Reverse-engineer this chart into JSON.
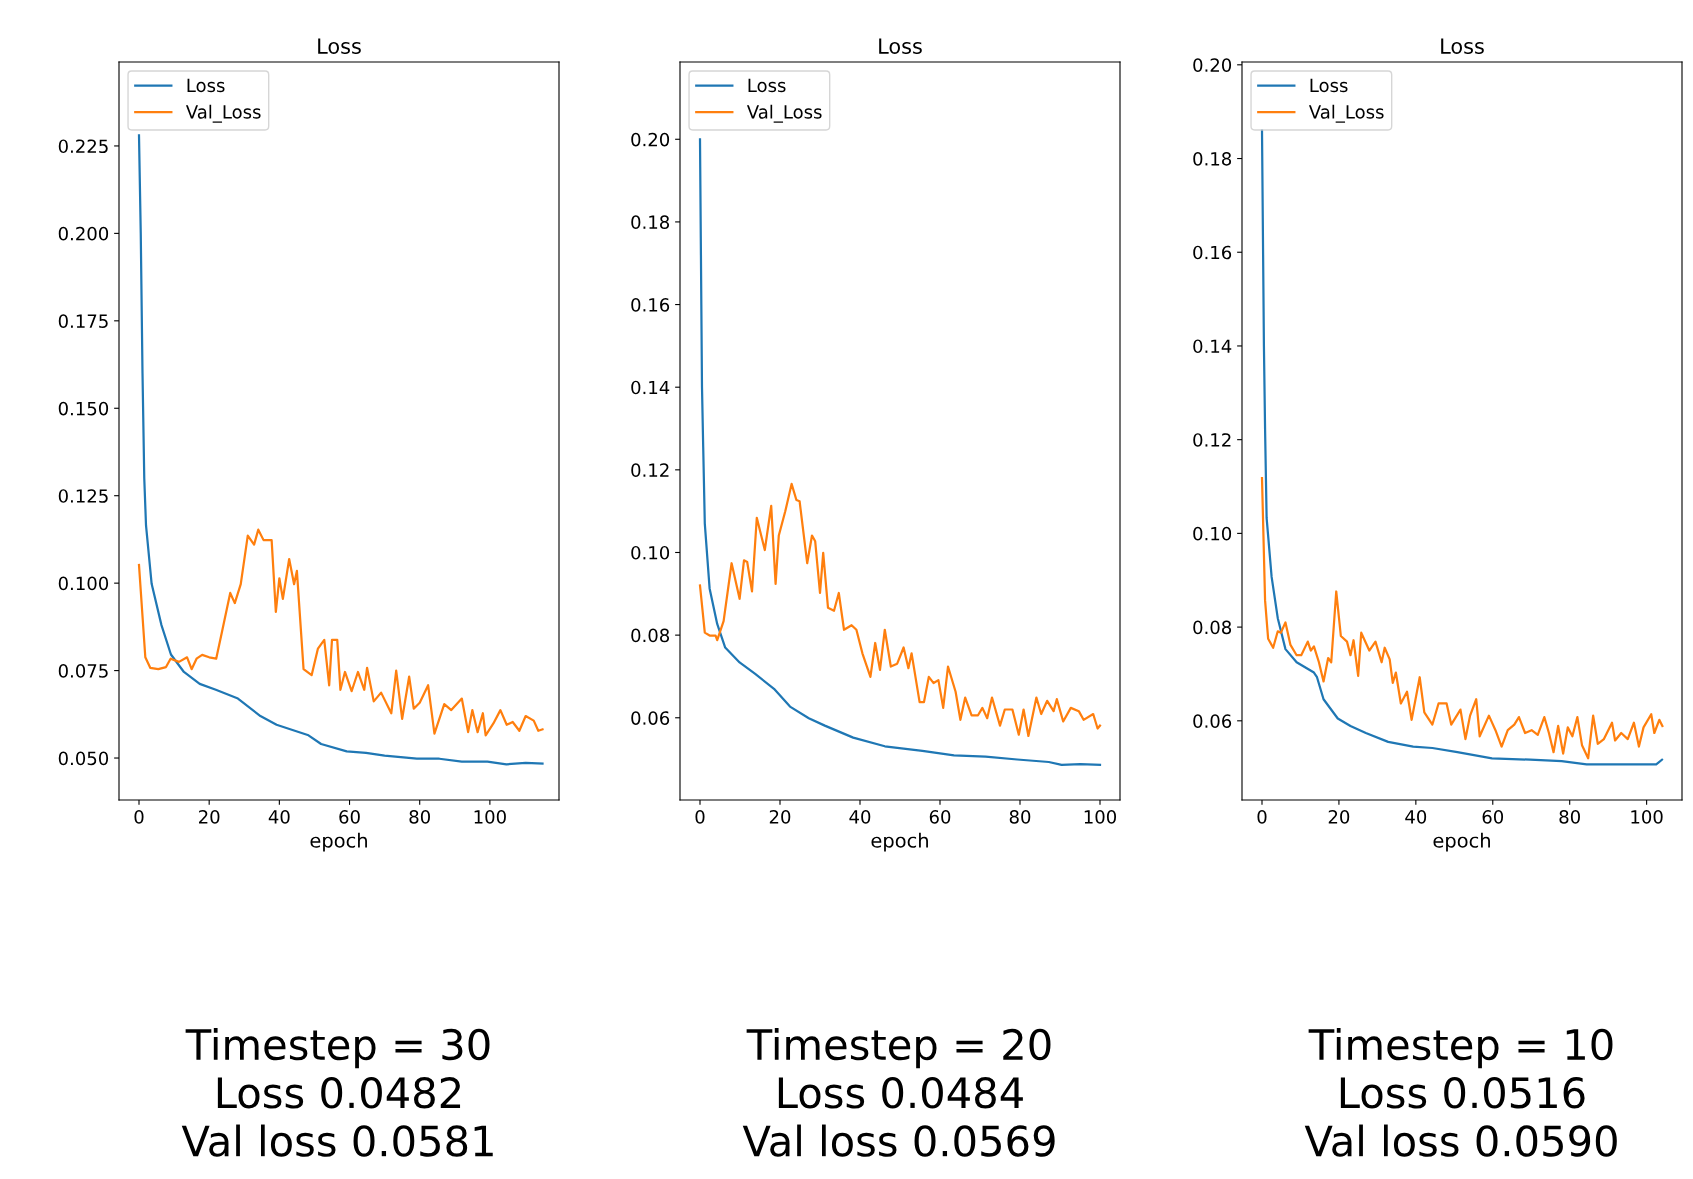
{
  "chart_data": [
    {
      "type": "line",
      "title": "Loss",
      "xlabel": "epoch",
      "legend": "top left",
      "xlim": [
        -5.7,
        119.7
      ],
      "ylim": [
        0.038,
        0.249
      ],
      "xticks": [
        0,
        20,
        40,
        60,
        80,
        100
      ],
      "yticks": [
        {
          "value": 0.05,
          "label": "0.050"
        },
        {
          "value": 0.075,
          "label": "0.075"
        },
        {
          "value": 0.1,
          "label": "0.100"
        },
        {
          "value": 0.125,
          "label": "0.125"
        },
        {
          "value": 0.15,
          "label": "0.150"
        },
        {
          "value": 0.175,
          "label": "0.175"
        },
        {
          "value": 0.2,
          "label": "0.200"
        },
        {
          "value": 0.225,
          "label": "0.225"
        }
      ],
      "series": [
        {
          "name": "Loss",
          "color": "#1f77b4",
          "x": [
            0,
            0.5,
            1,
            1.5,
            2,
            3.6,
            6.4,
            9.1,
            12.8,
            17.3,
            21.9,
            28.2,
            34.6,
            39.2,
            48.3,
            51.9,
            59.2,
            64.7,
            70,
            79.2,
            85.6,
            92,
            99.3,
            104.7,
            110.2,
            115
          ],
          "values": [
            0.228,
            0.2,
            0.16,
            0.13,
            0.1165,
            0.0998,
            0.088,
            0.0796,
            0.0746,
            0.0712,
            0.0695,
            0.067,
            0.062,
            0.0595,
            0.0565,
            0.054,
            0.0519,
            0.0515,
            0.0507,
            0.0498,
            0.0498,
            0.049,
            0.049,
            0.0482,
            0.0486,
            0.0484
          ]
        },
        {
          "name": "Val_Loss",
          "color": "#ff7f0e",
          "x": [
            0,
            1.8,
            3.2,
            5.5,
            7.7,
            9,
            11.4,
            13.7,
            15,
            16.4,
            18,
            20,
            22,
            23.7,
            26,
            27.3,
            29,
            31,
            32.8,
            34,
            35.5,
            37.8,
            39,
            40,
            41,
            42.8,
            44.2,
            45,
            46.9,
            49.2,
            51,
            52.8,
            54.2,
            55,
            56.5,
            57.4,
            58.7,
            60.6,
            62.4,
            64.2,
            65,
            66.9,
            69,
            71.9,
            73.3,
            75,
            77,
            78.3,
            80,
            82.4,
            84.2,
            87,
            89,
            92,
            93.8,
            95,
            96.5,
            98,
            98.8,
            101,
            103,
            104.8,
            106.5,
            108.4,
            110.2,
            112.5,
            113.8,
            115
          ],
          "values": [
            0.1052,
            0.0788,
            0.0758,
            0.0754,
            0.076,
            0.0784,
            0.0775,
            0.0788,
            0.0754,
            0.0784,
            0.0795,
            0.0788,
            0.0784,
            0.0863,
            0.0972,
            0.0943,
            0.0997,
            0.1136,
            0.111,
            0.1153,
            0.1123,
            0.1123,
            0.0918,
            0.1014,
            0.0955,
            0.1069,
            0.0997,
            0.1035,
            0.0754,
            0.0737,
            0.0813,
            0.0838,
            0.0708,
            0.0838,
            0.0838,
            0.0695,
            0.0746,
            0.0691,
            0.0746,
            0.0695,
            0.0758,
            0.0662,
            0.0687,
            0.0628,
            0.075,
            0.0612,
            0.0733,
            0.0641,
            0.0658,
            0.0708,
            0.057,
            0.0654,
            0.0637,
            0.067,
            0.0574,
            0.0637,
            0.0574,
            0.0628,
            0.0565,
            0.0599,
            0.0637,
            0.0595,
            0.0603,
            0.0578,
            0.062,
            0.0607,
            0.0578,
            0.0582
          ]
        }
      ],
      "annotations": [
        "Timestep = 30",
        "Loss 0.0482",
        "Val loss 0.0581"
      ]
    },
    {
      "type": "line",
      "title": "Loss",
      "xlabel": "epoch",
      "legend": "top left",
      "xlim": [
        -5,
        105
      ],
      "ylim": [
        0.0401,
        0.2187
      ],
      "xticks": [
        0,
        20,
        40,
        60,
        80,
        100
      ],
      "yticks": [
        {
          "value": 0.06,
          "label": "0.06"
        },
        {
          "value": 0.08,
          "label": "0.08"
        },
        {
          "value": 0.1,
          "label": "0.10"
        },
        {
          "value": 0.12,
          "label": "0.12"
        },
        {
          "value": 0.14,
          "label": "0.14"
        },
        {
          "value": 0.16,
          "label": "0.16"
        },
        {
          "value": 0.18,
          "label": "0.18"
        },
        {
          "value": 0.2,
          "label": "0.20"
        }
      ],
      "series": [
        {
          "name": "Loss",
          "color": "#1f77b4",
          "x": [
            0,
            0.5,
            0.8,
            1.2,
            2.4,
            4.3,
            6.3,
            9.9,
            13.8,
            18.5,
            22.5,
            27.2,
            31.2,
            38.3,
            46.2,
            55.6,
            63.5,
            71.4,
            79.3,
            87.2,
            90.4,
            95.1,
            100
          ],
          "values": [
            0.2,
            0.14,
            0.1256,
            0.107,
            0.0913,
            0.0827,
            0.077,
            0.0734,
            0.0706,
            0.067,
            0.0627,
            0.0599,
            0.0581,
            0.0552,
            0.0531,
            0.052,
            0.0509,
            0.0506,
            0.0499,
            0.0493,
            0.0486,
            0.0488,
            0.0486
          ]
        },
        {
          "name": "Val_Loss",
          "color": "#ff7f0e",
          "x": [
            0,
            1.2,
            2.4,
            3.9,
            4.3,
            5.9,
            7.9,
            9.9,
            11,
            11.8,
            13,
            14.2,
            16.2,
            17.8,
            18.9,
            19.7,
            21.3,
            22.9,
            24.1,
            24.9,
            26.8,
            28,
            28.8,
            30,
            30.8,
            32,
            33.5,
            34.7,
            36,
            37.9,
            39.1,
            40.6,
            42.6,
            43.8,
            45,
            46.2,
            47.7,
            49.3,
            50.9,
            52.1,
            52.9,
            54.9,
            56,
            57.2,
            58.4,
            59.6,
            60.8,
            62,
            63.9,
            65.1,
            66.3,
            67.9,
            69.5,
            70.6,
            71.8,
            73,
            75,
            76.2,
            78.1,
            79.7,
            80.9,
            82.1,
            84.1,
            85.3,
            86.8,
            88.4,
            89.2,
            90.8,
            92.7,
            94.7,
            95.9,
            98.3,
            99.4,
            100
          ],
          "values": [
            0.092,
            0.0806,
            0.0799,
            0.0799,
            0.0788,
            0.0834,
            0.0974,
            0.0888,
            0.0981,
            0.0977,
            0.0906,
            0.1084,
            0.1006,
            0.1113,
            0.0924,
            0.1041,
            0.1099,
            0.1166,
            0.1127,
            0.1124,
            0.0974,
            0.1041,
            0.1027,
            0.0902,
            0.0999,
            0.0866,
            0.0859,
            0.0902,
            0.0813,
            0.0824,
            0.0813,
            0.0756,
            0.0699,
            0.0781,
            0.0716,
            0.0813,
            0.0724,
            0.0731,
            0.077,
            0.072,
            0.0756,
            0.0638,
            0.0638,
            0.0699,
            0.0684,
            0.0691,
            0.0624,
            0.0724,
            0.0663,
            0.0595,
            0.0649,
            0.0606,
            0.0606,
            0.0624,
            0.0599,
            0.0649,
            0.0581,
            0.062,
            0.062,
            0.0559,
            0.062,
            0.0556,
            0.0649,
            0.0609,
            0.0641,
            0.0616,
            0.0645,
            0.0591,
            0.0624,
            0.0616,
            0.0595,
            0.0609,
            0.0574,
            0.0581
          ]
        }
      ],
      "annotations": [
        "Timestep = 20",
        "Loss 0.0484",
        "Val loss 0.0569"
      ]
    },
    {
      "type": "line",
      "title": "Loss",
      "xlabel": "epoch",
      "legend": "top left",
      "xlim": [
        -5.2,
        109.2
      ],
      "ylim": [
        0.0431,
        0.2006
      ],
      "xticks": [
        0,
        20,
        40,
        60,
        80,
        100
      ],
      "yticks": [
        {
          "value": 0.06,
          "label": "0.06"
        },
        {
          "value": 0.08,
          "label": "0.08"
        },
        {
          "value": 0.1,
          "label": "0.10"
        },
        {
          "value": 0.12,
          "label": "0.12"
        },
        {
          "value": 0.14,
          "label": "0.14"
        },
        {
          "value": 0.16,
          "label": "0.16"
        },
        {
          "value": 0.18,
          "label": "0.18"
        },
        {
          "value": 0.2,
          "label": "0.20"
        }
      ],
      "series": [
        {
          "name": "Loss",
          "color": "#1f77b4",
          "x": [
            0,
            0.5,
            0.8,
            1.2,
            2.5,
            4.1,
            6.1,
            9,
            13.5,
            14.3,
            16,
            19.7,
            23,
            27,
            32.8,
            39.3,
            44.3,
            50.8,
            59.8,
            69.7,
            77.9,
            84.4,
            94.3,
            102.5,
            104
          ],
          "values": [
            0.186,
            0.14,
            0.1222,
            0.1033,
            0.0907,
            0.0819,
            0.0753,
            0.0725,
            0.0703,
            0.0693,
            0.0646,
            0.0605,
            0.0589,
            0.0574,
            0.0555,
            0.0545,
            0.0542,
            0.0533,
            0.052,
            0.0517,
            0.0514,
            0.0507,
            0.0507,
            0.0507,
            0.0517
          ]
        },
        {
          "name": "Val_Loss",
          "color": "#ff7f0e",
          "x": [
            0,
            0.8,
            1.6,
            2.9,
            4.1,
            4.9,
            6.1,
            7.4,
            9,
            10.2,
            11.9,
            12.7,
            13.5,
            14.8,
            16,
            17.2,
            18,
            19.3,
            20.5,
            22.1,
            23,
            23.8,
            25,
            25.8,
            27.9,
            29.5,
            31.1,
            31.9,
            33.2,
            34,
            34.8,
            36.1,
            37.7,
            38.9,
            41,
            42.2,
            44.3,
            45.9,
            48,
            49.2,
            50.4,
            51.6,
            52.9,
            54.1,
            55.7,
            56.6,
            59,
            60.7,
            62.3,
            63.9,
            65.6,
            66.8,
            68.4,
            70.1,
            71.7,
            73.4,
            74.6,
            75.8,
            77,
            78.3,
            79.5,
            80.7,
            82,
            83.2,
            84.8,
            86.1,
            87.3,
            88.9,
            91,
            91.8,
            93.4,
            95.1,
            96.7,
            98,
            99.2,
            101.2,
            102,
            103.3,
            104.1
          ],
          "values": [
            0.1118,
            0.0857,
            0.0775,
            0.0756,
            0.0791,
            0.0788,
            0.081,
            0.0762,
            0.074,
            0.074,
            0.0769,
            0.075,
            0.0759,
            0.0725,
            0.0684,
            0.0734,
            0.0725,
            0.0876,
            0.0781,
            0.0769,
            0.074,
            0.0772,
            0.0696,
            0.0788,
            0.075,
            0.0769,
            0.0725,
            0.0756,
            0.0731,
            0.0681,
            0.0703,
            0.0637,
            0.0662,
            0.0602,
            0.0693,
            0.0618,
            0.0592,
            0.0637,
            0.0637,
            0.0592,
            0.0608,
            0.0624,
            0.0561,
            0.0611,
            0.0646,
            0.0567,
            0.0611,
            0.058,
            0.0545,
            0.058,
            0.0592,
            0.0608,
            0.0574,
            0.058,
            0.057,
            0.0608,
            0.0574,
            0.0533,
            0.0589,
            0.053,
            0.0586,
            0.0567,
            0.0608,
            0.0548,
            0.052,
            0.0611,
            0.0551,
            0.0561,
            0.0596,
            0.0558,
            0.0574,
            0.0561,
            0.0596,
            0.0545,
            0.0586,
            0.0614,
            0.0574,
            0.0602,
            0.0589
          ]
        }
      ],
      "annotations": [
        "Timestep = 10",
        "Loss 0.0516",
        "Val loss 0.0590"
      ]
    }
  ]
}
